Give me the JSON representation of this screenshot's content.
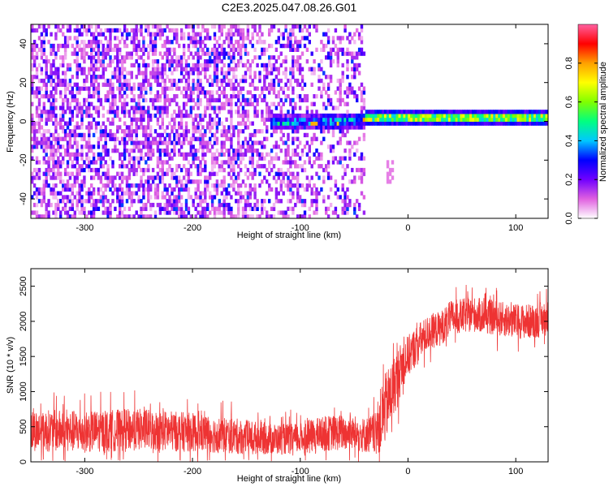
{
  "figure_title": "C2E3.2025.047.08.26.G01",
  "chart_data": [
    {
      "type": "heatmap",
      "xlabel": "Height of straight line (km)",
      "ylabel": "Frequency (Hz)",
      "xlim": [
        -350,
        130
      ],
      "ylim": [
        -50,
        50
      ],
      "xticks": [
        -300,
        -200,
        -100,
        0,
        100
      ],
      "yticks": [
        -40,
        -20,
        0,
        20,
        40
      ],
      "colorbar": {
        "label": "Normalized spectral amplitude",
        "range": [
          0,
          1
        ],
        "ticks": [
          "0.0",
          "0.2",
          "0.4",
          "0.6",
          "0.8"
        ],
        "tick_values": [
          0,
          0.2,
          0.4,
          0.6,
          0.8
        ],
        "colormap": [
          "#ffffff",
          "#e060e0",
          "#7000ff",
          "#0000ff",
          "#00c8ff",
          "#00ff80",
          "#80ff00",
          "#ffff00",
          "#ffa000",
          "#ff0000",
          "#ff60a0"
        ]
      },
      "features": [
        {
          "region": "noise",
          "x": [
            -350,
            -40
          ],
          "y": [
            -50,
            50
          ],
          "amplitude": 0.15
        },
        {
          "region": "carrier_line",
          "x": [
            -130,
            130
          ],
          "y": [
            -5,
            6
          ],
          "center_frequency_hz": 1,
          "amplitude": 0.6
        },
        {
          "region": "faint_blob",
          "x": [
            -22,
            -15
          ],
          "y": [
            -32,
            -20
          ],
          "amplitude": 0.1
        }
      ]
    },
    {
      "type": "line",
      "xlabel": "Height of straight line (km)",
      "ylabel": "SNR (10 * v/v)",
      "xlim": [
        -350,
        130
      ],
      "ylim": [
        0,
        2750
      ],
      "xticks": [
        -300,
        -200,
        -100,
        0,
        100
      ],
      "yticks": [
        0,
        500,
        1000,
        1500,
        2000,
        2500
      ],
      "color": "#ee3333",
      "series": [
        {
          "x": [
            -350,
            -300,
            -250,
            -200,
            -150,
            -120,
            -100,
            -80,
            -60,
            -40,
            -30,
            -25,
            -20,
            -15,
            -10,
            -5,
            0,
            10,
            20,
            30,
            40,
            60,
            80,
            100,
            115,
            130
          ],
          "y": [
            450,
            430,
            460,
            420,
            350,
            320,
            330,
            400,
            420,
            380,
            400,
            600,
            800,
            1000,
            1200,
            1400,
            1500,
            1700,
            1850,
            1900,
            2050,
            2100,
            2050,
            2000,
            2000,
            2050
          ],
          "noise_amplitude": [
            300,
            300,
            300,
            280,
            250,
            220,
            220,
            250,
            260,
            250,
            300,
            500,
            500,
            450,
            400,
            350,
            300,
            280,
            250,
            250,
            250,
            250,
            250,
            250,
            250,
            250
          ]
        }
      ]
    }
  ]
}
